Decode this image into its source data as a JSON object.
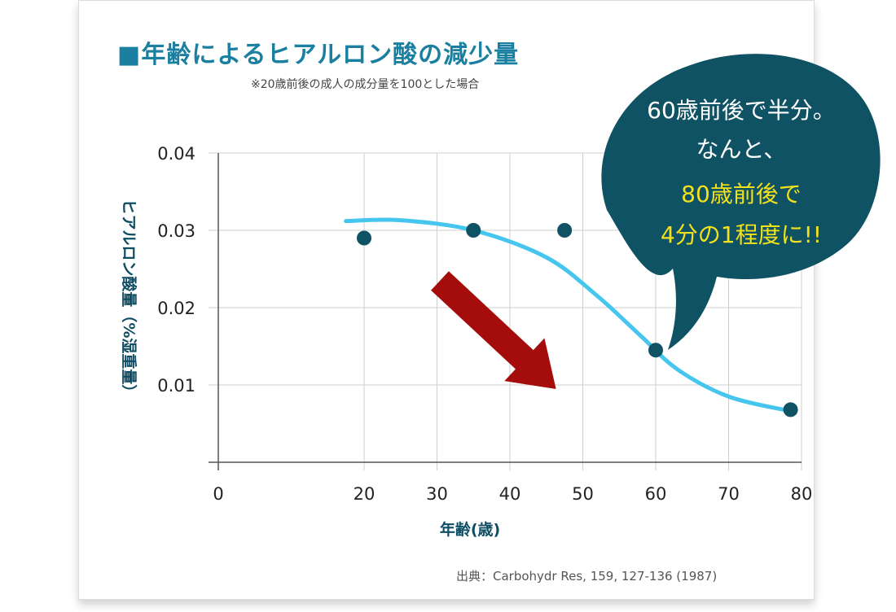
{
  "header": {
    "title": "■年齢によるヒアルロン酸の減少量",
    "subtitle": "※20歳前後の成人の成分量を100とした場合"
  },
  "source": "出典：Carbohydr Res, 159, 127-136 (1987)",
  "callout": {
    "lines": [
      "60歳前後で半分。",
      "なんと、",
      "80歳前後で",
      "4分の1程度に!!"
    ],
    "text_color": "#ffffff",
    "highlight_color": "#f3e11c",
    "bubble_color": "#0f5264"
  },
  "colors": {
    "points": "#0f5264",
    "curve": "#46c6ee",
    "arrow": "#a50d0d",
    "grid": "#cfcfcf",
    "title": "#1a7fa0"
  },
  "chart_data": {
    "type": "scatter",
    "xlabel": "年齢(歳)",
    "ylabel": "ヒアルロン酸量（%湿重量）",
    "xlim": [
      0,
      80
    ],
    "ylim": [
      0,
      0.04
    ],
    "x_ticks": [
      "0",
      "20",
      "30",
      "40",
      "50",
      "60",
      "70",
      "80"
    ],
    "x_tick_values": [
      0,
      20,
      30,
      40,
      50,
      60,
      70,
      80
    ],
    "y_ticks": [
      "0.04",
      "0.03",
      "0.02",
      "0.01"
    ],
    "y_tick_values": [
      0.04,
      0.03,
      0.02,
      0.01
    ],
    "grid": true,
    "points": [
      {
        "x": 20,
        "y": 0.029
      },
      {
        "x": 35,
        "y": 0.03
      },
      {
        "x": 47.5,
        "y": 0.03
      },
      {
        "x": 60,
        "y": 0.0145
      },
      {
        "x": 78.5,
        "y": 0.0068
      }
    ],
    "trend_curve": [
      {
        "x": 17.5,
        "y": 0.0312
      },
      {
        "x": 25,
        "y": 0.0313
      },
      {
        "x": 35,
        "y": 0.03
      },
      {
        "x": 45,
        "y": 0.0265
      },
      {
        "x": 52,
        "y": 0.0215
      },
      {
        "x": 58,
        "y": 0.0163
      },
      {
        "x": 63,
        "y": 0.012
      },
      {
        "x": 70,
        "y": 0.0085
      },
      {
        "x": 78,
        "y": 0.0067
      }
    ]
  }
}
